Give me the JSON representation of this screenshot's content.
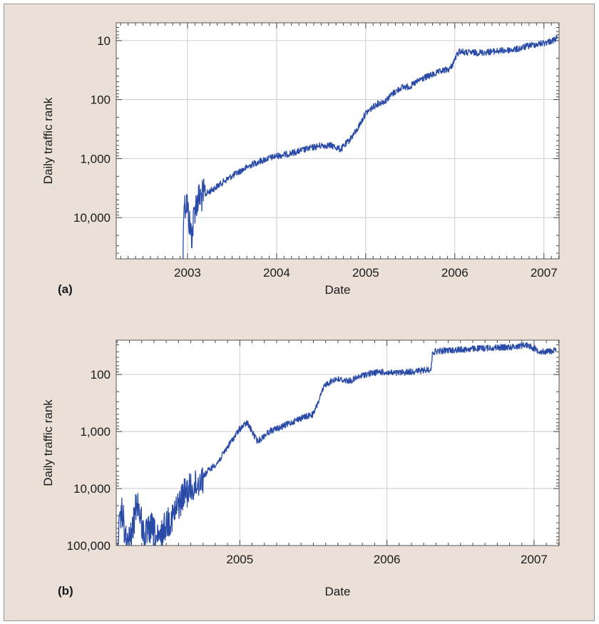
{
  "chart_data": [
    {
      "type": "line",
      "panel_label": "(a)",
      "xlabel": "Date",
      "ylabel": "Daily traffic rank",
      "y_scale": "log-inverted",
      "y_ticks": [
        10,
        100,
        1000,
        10000
      ],
      "y_tick_labels": [
        "10",
        "100",
        "1,000",
        "10,000"
      ],
      "x_ticks": [
        2003,
        2004,
        2005,
        2006,
        2007
      ],
      "x_tick_labels": [
        "2003",
        "2004",
        "2005",
        "2006",
        "2007"
      ],
      "xlim": [
        2002.2,
        2007.17
      ],
      "ylim": [
        50000,
        5
      ],
      "grid": true,
      "line_color": "#2a4aa8",
      "series": [
        {
          "x": [
            2002.95,
            2002.96,
            2002.97,
            2002.99,
            2003.02,
            2003.05,
            2003.08,
            2003.12,
            2003.2,
            2003.3,
            2003.45,
            2003.6,
            2003.75,
            2003.9,
            2004.0,
            2004.1,
            2004.25,
            2004.4,
            2004.5,
            2004.62,
            2004.72,
            2004.8,
            2004.9,
            2005.0,
            2005.12,
            2005.22,
            2005.3,
            2005.4,
            2005.5,
            2005.62,
            2005.75,
            2005.85,
            2005.95,
            2006.02,
            2006.05,
            2006.12,
            2006.3,
            2006.5,
            2006.7,
            2006.85,
            2007.0,
            2007.1,
            2007.15
          ],
          "values": [
            50000,
            4000,
            6500,
            5000,
            12000,
            20000,
            7000,
            4800,
            4000,
            3200,
            2200,
            1600,
            1200,
            1000,
            900,
            850,
            750,
            650,
            600,
            600,
            700,
            520,
            330,
            170,
            120,
            105,
            80,
            62,
            60,
            45,
            38,
            33,
            30,
            18,
            15,
            16,
            16,
            15,
            14,
            12,
            11,
            10,
            9
          ]
        }
      ]
    },
    {
      "type": "line",
      "panel_label": "(b)",
      "xlabel": "Date",
      "ylabel": "Daily traffic rank",
      "y_scale": "log-inverted",
      "y_ticks": [
        100,
        1000,
        10000,
        100000
      ],
      "y_tick_labels": [
        "100",
        "1,000",
        "10,000",
        "100,000"
      ],
      "x_ticks": [
        2005,
        2006,
        2007
      ],
      "x_tick_labels": [
        "2005",
        "2006",
        "2007"
      ],
      "xlim": [
        2004.16,
        2007.17
      ],
      "ylim": [
        100000,
        25
      ],
      "grid": true,
      "line_color": "#2a4aa8",
      "series": [
        {
          "x": [
            2004.17,
            2004.2,
            2004.23,
            2004.27,
            2004.3,
            2004.35,
            2004.4,
            2004.45,
            2004.5,
            2004.55,
            2004.62,
            2004.7,
            2004.78,
            2004.85,
            2004.92,
            2005.0,
            2005.05,
            2005.12,
            2005.2,
            2005.3,
            2005.4,
            2005.5,
            2005.58,
            2005.65,
            2005.75,
            2005.85,
            2005.95,
            2006.05,
            2006.15,
            2006.25,
            2006.3,
            2006.31,
            2006.4,
            2006.55,
            2006.7,
            2006.85,
            2006.95,
            2007.05,
            2007.15
          ],
          "values": [
            80000,
            25000,
            100000,
            60000,
            15000,
            70000,
            50000,
            90000,
            40000,
            30000,
            12000,
            9000,
            5000,
            3500,
            1800,
            900,
            700,
            1500,
            1000,
            800,
            600,
            500,
            150,
            120,
            130,
            100,
            90,
            95,
            90,
            85,
            80,
            40,
            38,
            36,
            34,
            33,
            30,
            40,
            38
          ]
        }
      ]
    }
  ]
}
